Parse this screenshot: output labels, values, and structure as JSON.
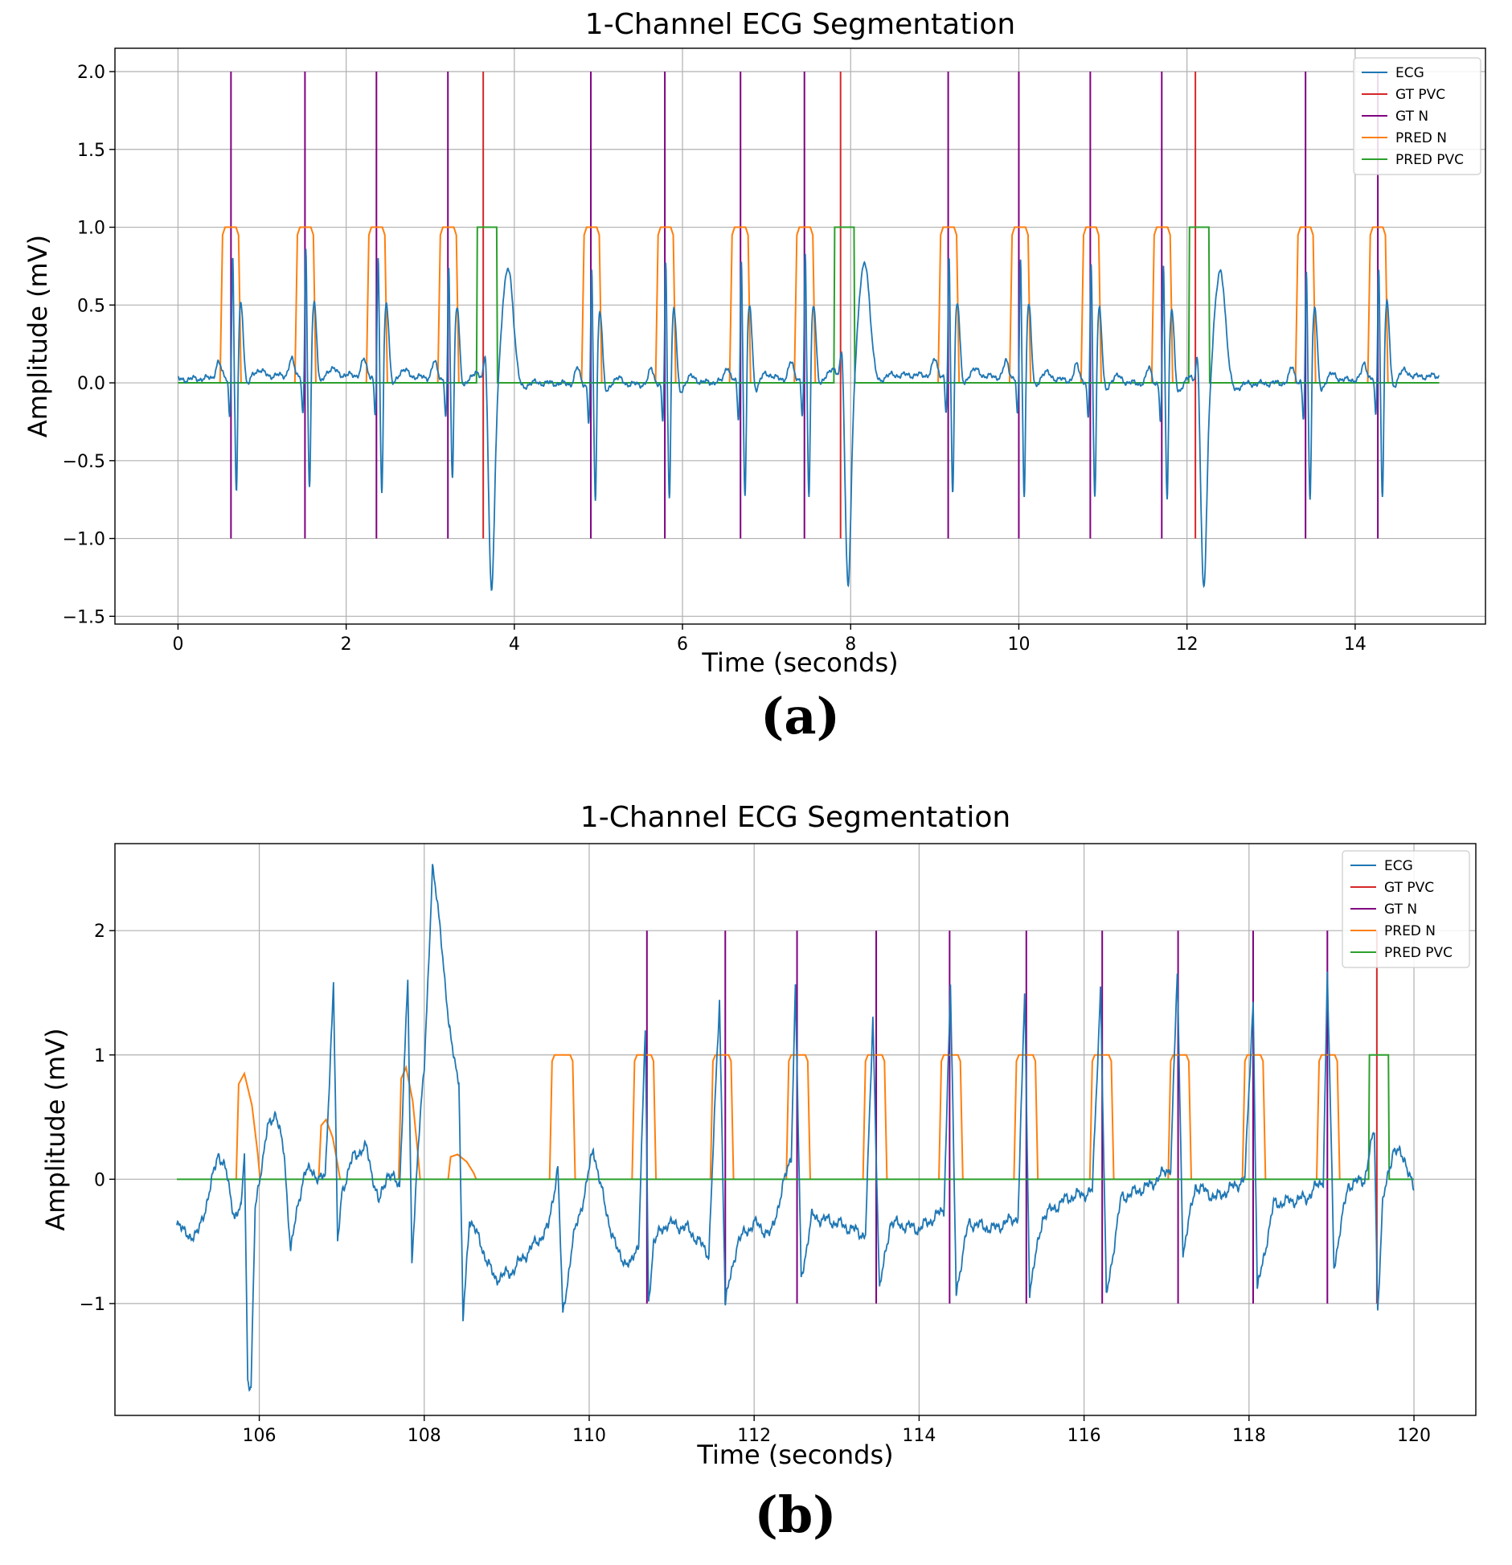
{
  "chart_data": [
    {
      "type": "line",
      "panel_label": "(a)",
      "title": "1-Channel ECG Segmentation",
      "xlabel": "Time (seconds)",
      "ylabel": "Amplitude (mV)",
      "xlim": [
        -0.75,
        15.55
      ],
      "ylim": [
        -1.55,
        2.15
      ],
      "xticks": [
        0,
        2,
        4,
        6,
        8,
        10,
        12,
        14
      ],
      "xtick_labels": [
        "0",
        "2",
        "4",
        "6",
        "8",
        "10",
        "12",
        "14"
      ],
      "yticks": [
        2.0,
        1.5,
        1.0,
        0.5,
        0.0,
        -0.5,
        -1.0,
        -1.5
      ],
      "ytick_labels": [
        "2.0",
        "1.5",
        "1.0",
        "0.5",
        "0.0",
        "−0.5",
        "−1.0",
        "−1.5"
      ],
      "grid": true,
      "legend_position": "top-right",
      "series": [
        {
          "name": "ECG",
          "color": "#1f77b4"
        },
        {
          "name": "GT PVC",
          "color": "#d62728"
        },
        {
          "name": "GT N",
          "color": "#800080"
        },
        {
          "name": "PRED N",
          "color": "#ff7f0e"
        },
        {
          "name": "PRED PVC",
          "color": "#2ca02c"
        }
      ],
      "time_range": [
        0,
        15
      ],
      "gt_marker_range": [
        -1.0,
        2.0
      ],
      "ecg_baseline": 0.02,
      "ecg_beats": [
        {
          "t": 0.65,
          "r": 0.78,
          "s": -0.82,
          "type": "N"
        },
        {
          "t": 1.52,
          "r": 0.82,
          "s": -0.82,
          "type": "N"
        },
        {
          "t": 2.38,
          "r": 0.75,
          "s": -0.83,
          "type": "N"
        },
        {
          "t": 3.22,
          "r": 0.7,
          "s": -0.72,
          "type": "N"
        },
        {
          "t": 3.68,
          "r": 0.77,
          "s": -1.35,
          "type": "PVC"
        },
        {
          "t": 4.92,
          "r": 0.72,
          "s": -0.82,
          "type": "N"
        },
        {
          "t": 5.8,
          "r": 0.78,
          "s": -0.8,
          "type": "N"
        },
        {
          "t": 6.7,
          "r": 0.78,
          "s": -0.82,
          "type": "N"
        },
        {
          "t": 7.46,
          "r": 0.78,
          "s": -0.84,
          "type": "N"
        },
        {
          "t": 7.92,
          "r": 0.77,
          "s": -1.35,
          "type": "PVC"
        },
        {
          "t": 9.17,
          "r": 0.75,
          "s": -0.82,
          "type": "N"
        },
        {
          "t": 10.02,
          "r": 0.76,
          "s": -0.84,
          "type": "N"
        },
        {
          "t": 10.86,
          "r": 0.76,
          "s": -0.82,
          "type": "N"
        },
        {
          "t": 11.72,
          "r": 0.76,
          "s": -0.82,
          "type": "N"
        },
        {
          "t": 12.15,
          "r": 0.77,
          "s": -1.32,
          "type": "PVC"
        },
        {
          "t": 13.42,
          "r": 0.71,
          "s": -0.83,
          "type": "N"
        },
        {
          "t": 14.28,
          "r": 0.72,
          "s": -0.84,
          "type": "N"
        }
      ],
      "gt_n": [
        0.63,
        1.51,
        2.36,
        3.21,
        4.91,
        5.79,
        6.69,
        7.45,
        9.16,
        10.0,
        10.85,
        11.7,
        13.41,
        14.27
      ],
      "gt_pvc": [
        3.63,
        7.88,
        12.1
      ],
      "pred_n": [
        [
          0.53,
          0.72
        ],
        [
          1.42,
          1.61
        ],
        [
          2.27,
          2.46
        ],
        [
          3.12,
          3.31
        ],
        [
          4.83,
          5.01
        ],
        [
          5.71,
          5.89
        ],
        [
          6.59,
          6.78
        ],
        [
          7.36,
          7.55
        ],
        [
          9.07,
          9.26
        ],
        [
          9.92,
          10.11
        ],
        [
          10.77,
          10.95
        ],
        [
          11.61,
          11.8
        ],
        [
          13.32,
          13.5
        ],
        [
          14.18,
          14.36
        ]
      ],
      "pred_pvc": [
        [
          3.55,
          3.8
        ],
        [
          7.8,
          8.05
        ],
        [
          12.02,
          12.27
        ]
      ]
    },
    {
      "type": "line",
      "panel_label": "(b)",
      "title": "1-Channel ECG Segmentation",
      "xlabel": "Time (seconds)",
      "ylabel": "Amplitude (mV)",
      "xlim": [
        104.25,
        120.75
      ],
      "ylim": [
        -1.9,
        2.7
      ],
      "xticks": [
        106,
        108,
        110,
        112,
        114,
        116,
        118,
        120
      ],
      "xtick_labels": [
        "106",
        "108",
        "110",
        "112",
        "114",
        "116",
        "118",
        "120"
      ],
      "yticks": [
        2,
        1,
        0,
        -1
      ],
      "ytick_labels": [
        "2",
        "1",
        "0",
        "−1"
      ],
      "grid": true,
      "legend_position": "top-right",
      "series": [
        {
          "name": "ECG",
          "color": "#1f77b4"
        },
        {
          "name": "GT PVC",
          "color": "#d62728"
        },
        {
          "name": "GT N",
          "color": "#800080"
        },
        {
          "name": "PRED N",
          "color": "#ff7f0e"
        },
        {
          "name": "PRED PVC",
          "color": "#2ca02c"
        }
      ],
      "time_range": [
        105,
        120
      ],
      "gt_marker_range": [
        -1.0,
        2.0
      ],
      "ecg_trace": [
        [
          105.0,
          -0.32
        ],
        [
          105.1,
          -0.45
        ],
        [
          105.25,
          -0.45
        ],
        [
          105.4,
          -0.1
        ],
        [
          105.5,
          0.22
        ],
        [
          105.6,
          0.05
        ],
        [
          105.7,
          -0.3
        ],
        [
          105.78,
          -0.25
        ],
        [
          105.82,
          0.25
        ],
        [
          105.86,
          -1.6
        ],
        [
          105.9,
          -1.7
        ],
        [
          105.95,
          -0.25
        ],
        [
          106.0,
          0.0
        ],
        [
          106.1,
          0.4
        ],
        [
          106.2,
          0.55
        ],
        [
          106.3,
          0.2
        ],
        [
          106.38,
          -0.55
        ],
        [
          106.45,
          -0.3
        ],
        [
          106.55,
          0.08
        ],
        [
          106.7,
          0.03
        ],
        [
          106.8,
          0.0
        ],
        [
          106.9,
          1.6
        ],
        [
          106.95,
          -0.55
        ],
        [
          107.0,
          -0.1
        ],
        [
          107.15,
          0.2
        ],
        [
          107.3,
          0.25
        ],
        [
          107.45,
          -0.2
        ],
        [
          107.55,
          0.05
        ],
        [
          107.7,
          -0.05
        ],
        [
          107.8,
          1.6
        ],
        [
          107.85,
          -0.65
        ],
        [
          107.92,
          0.2
        ],
        [
          108.0,
          0.9
        ],
        [
          108.1,
          2.5
        ],
        [
          108.2,
          2.0
        ],
        [
          108.3,
          1.2
        ],
        [
          108.42,
          0.8
        ],
        [
          108.47,
          -1.15
        ],
        [
          108.55,
          -0.3
        ],
        [
          108.7,
          -0.55
        ],
        [
          108.85,
          -0.8
        ],
        [
          109.05,
          -0.75
        ],
        [
          109.3,
          -0.55
        ],
        [
          109.5,
          -0.4
        ],
        [
          109.62,
          0.1
        ],
        [
          109.68,
          -1.1
        ],
        [
          109.8,
          -0.5
        ],
        [
          109.95,
          -0.1
        ],
        [
          110.05,
          0.25
        ],
        [
          110.2,
          -0.25
        ],
        [
          110.35,
          -0.6
        ],
        [
          110.5,
          -0.7
        ],
        [
          110.6,
          -0.5
        ],
        [
          110.68,
          1.2
        ],
        [
          110.72,
          -1.0
        ],
        [
          110.78,
          -0.5
        ],
        [
          110.95,
          -0.35
        ],
        [
          111.2,
          -0.4
        ],
        [
          111.45,
          -0.6
        ],
        [
          111.58,
          1.45
        ],
        [
          111.65,
          -1.0
        ],
        [
          111.8,
          -0.5
        ],
        [
          112.0,
          -0.35
        ],
        [
          112.2,
          -0.45
        ],
        [
          112.45,
          0.2
        ],
        [
          112.5,
          1.55
        ],
        [
          112.57,
          -0.8
        ],
        [
          112.7,
          -0.3
        ],
        [
          113.0,
          -0.35
        ],
        [
          113.35,
          -0.45
        ],
        [
          113.44,
          1.3
        ],
        [
          113.52,
          -0.9
        ],
        [
          113.65,
          -0.35
        ],
        [
          114.0,
          -0.4
        ],
        [
          114.3,
          -0.25
        ],
        [
          114.38,
          1.55
        ],
        [
          114.45,
          -0.9
        ],
        [
          114.6,
          -0.35
        ],
        [
          114.9,
          -0.4
        ],
        [
          115.2,
          -0.3
        ],
        [
          115.28,
          1.5
        ],
        [
          115.34,
          -0.9
        ],
        [
          115.5,
          -0.3
        ],
        [
          115.8,
          -0.15
        ],
        [
          116.1,
          -0.1
        ],
        [
          116.2,
          1.55
        ],
        [
          116.27,
          -0.95
        ],
        [
          116.45,
          -0.15
        ],
        [
          116.8,
          -0.05
        ],
        [
          117.05,
          0.1
        ],
        [
          117.13,
          1.65
        ],
        [
          117.2,
          -0.6
        ],
        [
          117.35,
          -0.05
        ],
        [
          117.6,
          -0.15
        ],
        [
          117.95,
          0.0
        ],
        [
          118.05,
          1.45
        ],
        [
          118.1,
          -0.9
        ],
        [
          118.3,
          -0.2
        ],
        [
          118.7,
          -0.15
        ],
        [
          118.9,
          0.0
        ],
        [
          118.95,
          1.65
        ],
        [
          119.03,
          -0.7
        ],
        [
          119.2,
          -0.05
        ],
        [
          119.4,
          0.0
        ],
        [
          119.52,
          0.4
        ],
        [
          119.56,
          -1.05
        ],
        [
          119.62,
          -0.2
        ],
        [
          119.75,
          0.25
        ],
        [
          119.9,
          0.15
        ],
        [
          120.0,
          -0.1
        ]
      ],
      "gt_n": [
        110.7,
        111.65,
        112.52,
        113.48,
        114.37,
        115.3,
        116.22,
        117.14,
        118.05,
        118.95
      ],
      "gt_pvc": [
        119.55
      ],
      "pred_n": [
        {
          "start": 105.75,
          "end": 105.98,
          "level": 0.85,
          "taper": true
        },
        {
          "start": 106.75,
          "end": 106.95,
          "level": 0.48,
          "taper": true
        },
        {
          "start": 107.72,
          "end": 107.92,
          "level": 0.9,
          "taper": true
        },
        {
          "start": 108.32,
          "end": 108.6,
          "level": 0.2,
          "taper": true
        },
        {
          "start": 109.55,
          "end": 109.8,
          "level": 1.0
        },
        {
          "start": 110.55,
          "end": 110.78,
          "level": 1.0
        },
        {
          "start": 111.5,
          "end": 111.72,
          "level": 1.0
        },
        {
          "start": 112.42,
          "end": 112.65,
          "level": 1.0
        },
        {
          "start": 113.35,
          "end": 113.58,
          "level": 1.0
        },
        {
          "start": 114.27,
          "end": 114.5,
          "level": 1.0
        },
        {
          "start": 115.18,
          "end": 115.41,
          "level": 1.0
        },
        {
          "start": 116.1,
          "end": 116.33,
          "level": 1.0
        },
        {
          "start": 117.05,
          "end": 117.27,
          "level": 1.0
        },
        {
          "start": 117.95,
          "end": 118.17,
          "level": 1.0
        },
        {
          "start": 118.85,
          "end": 119.07,
          "level": 1.0
        }
      ],
      "pred_pvc": [
        [
          119.45,
          119.7
        ]
      ]
    }
  ]
}
